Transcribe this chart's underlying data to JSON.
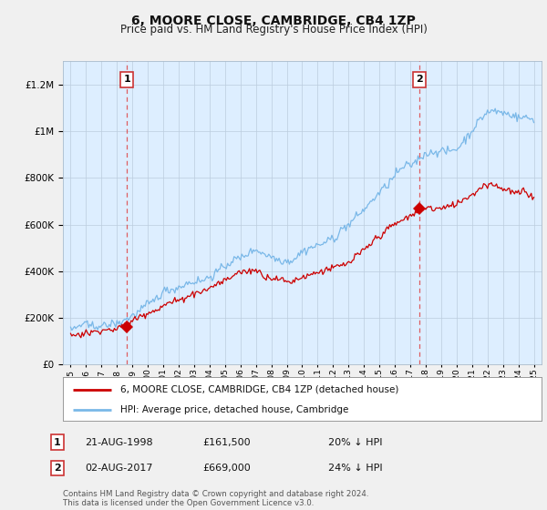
{
  "title": "6, MOORE CLOSE, CAMBRIDGE, CB4 1ZP",
  "subtitle": "Price paid vs. HM Land Registry's House Price Index (HPI)",
  "legend_line1": "6, MOORE CLOSE, CAMBRIDGE, CB4 1ZP (detached house)",
  "legend_line2": "HPI: Average price, detached house, Cambridge",
  "sale1_date": "21-AUG-1998",
  "sale1_price": "£161,500",
  "sale1_hpi": "20% ↓ HPI",
  "sale2_date": "02-AUG-2017",
  "sale2_price": "£669,000",
  "sale2_hpi": "24% ↓ HPI",
  "footer": "Contains HM Land Registry data © Crown copyright and database right 2024.\nThis data is licensed under the Open Government Licence v3.0.",
  "sale1_year": 1998.64,
  "sale2_year": 2017.58,
  "sale1_value": 161500,
  "sale2_value": 669000,
  "hpi_color": "#7ab8e8",
  "price_color": "#cc0000",
  "dashed_color": "#dd4444",
  "ylim_min": 0,
  "ylim_max": 1300000,
  "xlim_min": 1994.5,
  "xlim_max": 2025.5,
  "plot_bg_color": "#ddeeff",
  "fig_bg_color": "#f0f0f0"
}
